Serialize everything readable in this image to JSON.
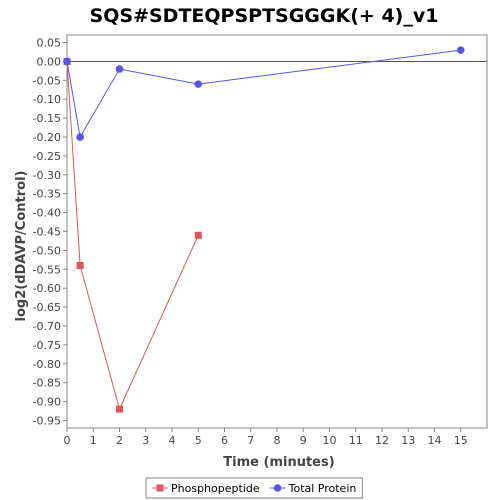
{
  "chart_data": {
    "type": "line",
    "title": "SQS#SDTEQPSPTSGGGK(+ 4)_v1",
    "xlabel": "Time (minutes)",
    "ylabel": "log2(dDAVP/Control)",
    "xlim": [
      0,
      16
    ],
    "ylim": [
      -0.97,
      0.07
    ],
    "x_ticks": [
      0,
      1,
      2,
      3,
      4,
      5,
      6,
      7,
      8,
      9,
      10,
      11,
      12,
      13,
      14,
      15
    ],
    "y_ticks": [
      0.05,
      0.0,
      -0.05,
      -0.1,
      -0.15,
      -0.2,
      -0.25,
      -0.3,
      -0.35,
      -0.4,
      -0.45,
      -0.5,
      -0.55,
      -0.6,
      -0.65,
      -0.7,
      -0.75,
      -0.8,
      -0.85,
      -0.9,
      -0.95
    ],
    "y_tick_labels": [
      "0.05",
      "0.00",
      "-0.05",
      "-0.10",
      "-0.15",
      "-0.20",
      "-0.25",
      "-0.30",
      "-0.35",
      "-0.40",
      "-0.45",
      "-0.50",
      "-0.55",
      "-0.60",
      "-0.65",
      "-0.70",
      "-0.75",
      "-0.80",
      "-0.85",
      "-0.90",
      "-0.95"
    ],
    "grid": false,
    "zero_line": true,
    "legend_position": "bottom",
    "series": [
      {
        "name": "Phosphopeptide",
        "marker": "square",
        "color": "#e05555",
        "x": [
          0,
          0.5,
          2,
          5
        ],
        "y": [
          0.0,
          -0.54,
          -0.92,
          -0.46
        ]
      },
      {
        "name": "Total Protein",
        "marker": "circle",
        "color": "#5555e8",
        "x": [
          0,
          0.5,
          2,
          5,
          15
        ],
        "y": [
          0.0,
          -0.2,
          -0.02,
          -0.06,
          0.03
        ]
      }
    ]
  }
}
